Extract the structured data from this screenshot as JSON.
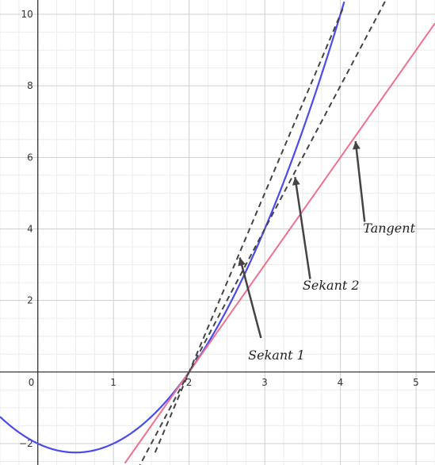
{
  "chart_data": {
    "type": "line",
    "title": "",
    "xlabel": "",
    "ylabel": "",
    "xlim": [
      -0.5,
      5.25
    ],
    "ylim": [
      -2.6,
      10.4
    ],
    "grid": true,
    "x_ticks": [
      0,
      1,
      2,
      3,
      4,
      5
    ],
    "y_ticks": [
      -2,
      2,
      4,
      6,
      8,
      10
    ],
    "colors": {
      "curve": "#4a4af0",
      "tangent": "#f0708f",
      "secant": "#444444",
      "axis": "#222222",
      "grid_major": "#cfcfcf",
      "grid_minor": "#ececec",
      "arrow": "#444444"
    },
    "series": [
      {
        "kind": "curve",
        "function": "x^2 - x - 2",
        "x_range": [
          -0.5,
          4.05
        ]
      },
      {
        "kind": "tangent",
        "point": [
          2,
          0
        ],
        "slope": 3,
        "x_range": [
          1.15,
          5.25
        ]
      },
      {
        "kind": "secant",
        "through": [
          [
            2,
            0
          ],
          [
            3,
            4
          ]
        ],
        "x_range": [
          1.32,
          4.6
        ]
      },
      {
        "kind": "secant",
        "through": [
          [
            2,
            0
          ],
          [
            4,
            10
          ]
        ],
        "x_range": [
          1.55,
          4.05
        ]
      }
    ],
    "annotations": [
      {
        "text": "Tangent",
        "x": 4.3,
        "y": 3.9,
        "arrow_from": [
          4.32,
          4.2
        ],
        "arrow_to": [
          4.2,
          6.45
        ]
      },
      {
        "text": "Sekant 2",
        "x": 3.5,
        "y": 2.3,
        "arrow_from": [
          3.6,
          2.6
        ],
        "arrow_to": [
          3.4,
          5.45
        ]
      },
      {
        "text": "Sekant 1",
        "x": 2.78,
        "y": 0.35,
        "arrow_from": [
          2.95,
          0.95
        ],
        "arrow_to": [
          2.67,
          3.2
        ]
      }
    ]
  }
}
